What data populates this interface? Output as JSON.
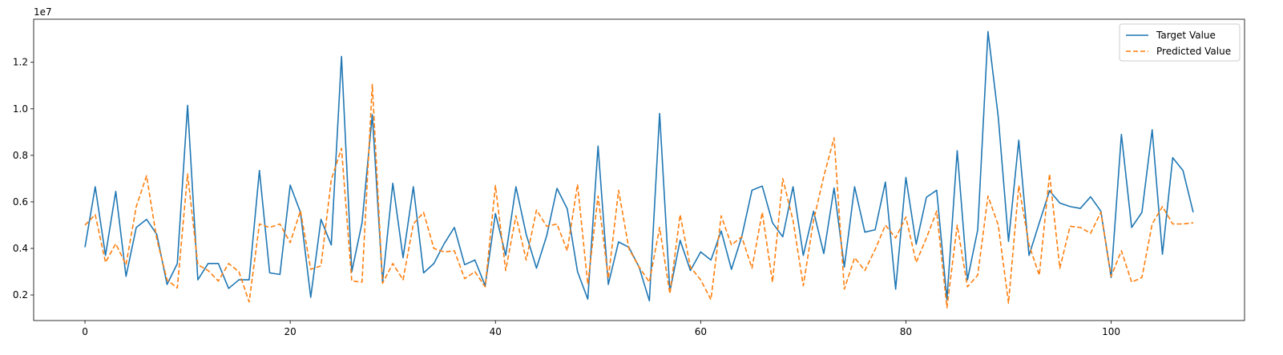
{
  "chart_data": {
    "type": "line",
    "title": "",
    "xlabel": "",
    "ylabel": "",
    "offset_label": "1e7",
    "xlim": [
      -5,
      113
    ],
    "ylim": [
      0.09,
      1.385
    ],
    "x_ticks": [
      0,
      20,
      40,
      60,
      80,
      100
    ],
    "x_tick_labels": [
      "0",
      "20",
      "40",
      "60",
      "80",
      "100"
    ],
    "y_ticks": [
      0.2,
      0.4,
      0.6,
      0.8,
      1.0,
      1.2
    ],
    "y_tick_labels": [
      "0.2",
      "0.4",
      "0.6",
      "0.8",
      "1.0",
      "1.2"
    ],
    "grid": false,
    "legend_position": "top-right",
    "series": [
      {
        "name": "Target Value",
        "color": "#1f77b4",
        "style": "solid",
        "values": [
          0.405,
          0.665,
          0.37,
          0.645,
          0.28,
          0.49,
          0.525,
          0.46,
          0.245,
          0.335,
          1.015,
          0.265,
          0.335,
          0.335,
          0.228,
          0.265,
          0.265,
          0.735,
          0.295,
          0.288,
          0.672,
          0.555,
          0.19,
          0.525,
          0.415,
          1.225,
          0.3,
          0.51,
          0.975,
          0.255,
          0.68,
          0.36,
          0.665,
          0.295,
          0.335,
          0.42,
          0.49,
          0.33,
          0.35,
          0.24,
          0.55,
          0.37,
          0.665,
          0.46,
          0.315,
          0.455,
          0.658,
          0.57,
          0.3,
          0.182,
          0.84,
          0.245,
          0.428,
          0.405,
          0.32,
          0.175,
          0.98,
          0.215,
          0.435,
          0.305,
          0.385,
          0.35,
          0.475,
          0.31,
          0.45,
          0.65,
          0.668,
          0.51,
          0.45,
          0.665,
          0.37,
          0.56,
          0.378,
          0.66,
          0.32,
          0.665,
          0.47,
          0.48,
          0.685,
          0.225,
          0.705,
          0.418,
          0.62,
          0.65,
          0.18,
          0.82,
          0.265,
          0.48,
          1.332,
          0.965,
          0.43,
          0.865,
          0.37,
          0.51,
          0.648,
          0.595,
          0.58,
          0.572,
          0.622,
          0.56,
          0.275,
          0.89,
          0.49,
          0.555,
          0.91,
          0.375,
          0.79,
          0.735,
          0.555
        ]
      },
      {
        "name": "Predicted Value",
        "color": "#ff7f0e",
        "style": "dashed",
        "values": [
          0.5,
          0.545,
          0.34,
          0.42,
          0.33,
          0.58,
          0.712,
          0.44,
          0.265,
          0.23,
          0.72,
          0.33,
          0.305,
          0.26,
          0.335,
          0.3,
          0.17,
          0.505,
          0.49,
          0.505,
          0.425,
          0.562,
          0.31,
          0.325,
          0.695,
          0.83,
          0.26,
          0.255,
          1.105,
          0.25,
          0.335,
          0.265,
          0.505,
          0.555,
          0.4,
          0.385,
          0.39,
          0.27,
          0.3,
          0.235,
          0.67,
          0.305,
          0.54,
          0.35,
          0.565,
          0.495,
          0.505,
          0.39,
          0.675,
          0.245,
          0.625,
          0.27,
          0.65,
          0.4,
          0.32,
          0.255,
          0.49,
          0.205,
          0.545,
          0.32,
          0.265,
          0.18,
          0.54,
          0.415,
          0.45,
          0.315,
          0.555,
          0.255,
          0.7,
          0.52,
          0.24,
          0.52,
          0.71,
          0.875,
          0.225,
          0.36,
          0.305,
          0.395,
          0.5,
          0.445,
          0.535,
          0.34,
          0.445,
          0.56,
          0.145,
          0.5,
          0.235,
          0.285,
          0.625,
          0.5,
          0.165,
          0.67,
          0.415,
          0.285,
          0.72,
          0.315,
          0.495,
          0.49,
          0.465,
          0.555,
          0.28,
          0.39,
          0.255,
          0.275,
          0.505,
          0.58,
          0.505,
          0.505,
          0.51
        ]
      }
    ]
  }
}
